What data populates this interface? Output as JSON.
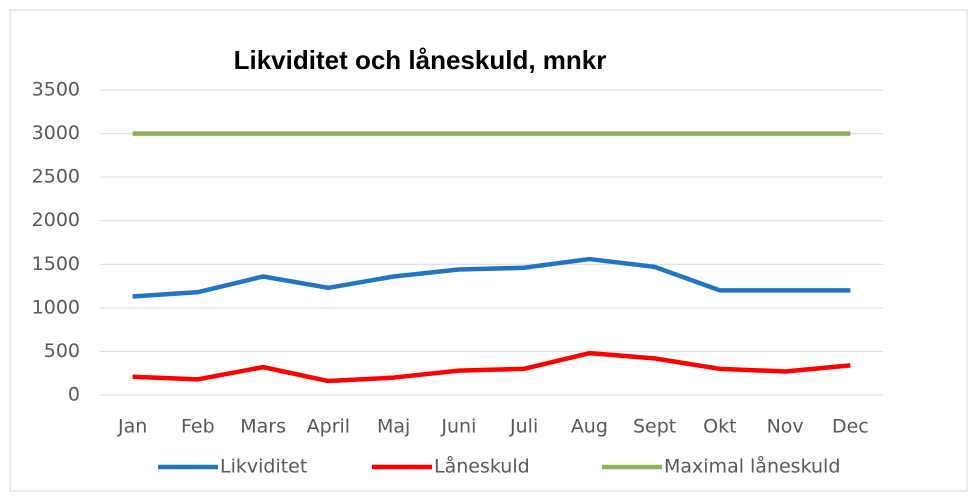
{
  "chart_data": {
    "type": "line",
    "title": "Likviditet och låneskuld, mnkr",
    "categories": [
      "Jan",
      "Feb",
      "Mars",
      "April",
      "Maj",
      "Juni",
      "Juli",
      "Aug",
      "Sept",
      "Okt",
      "Nov",
      "Dec"
    ],
    "series": [
      {
        "name": "Likviditet",
        "color": "#1f77c4",
        "values": [
          1130,
          1180,
          1360,
          1230,
          1360,
          1440,
          1460,
          1560,
          1470,
          1200,
          1200,
          1200
        ]
      },
      {
        "name": "Låneskuld",
        "color": "#ff0000",
        "values": [
          210,
          180,
          320,
          160,
          200,
          280,
          300,
          480,
          420,
          300,
          270,
          340
        ]
      },
      {
        "name": "Maximal låneskuld",
        "color": "#8db255",
        "values": [
          3000,
          3000,
          3000,
          3000,
          3000,
          3000,
          3000,
          3000,
          3000,
          3000,
          3000,
          3000
        ]
      }
    ],
    "ylim": [
      0,
      3500
    ],
    "yticks": [
      0,
      500,
      1000,
      1500,
      2000,
      2500,
      3000,
      3500
    ],
    "grid": true,
    "legend": "bottom"
  }
}
